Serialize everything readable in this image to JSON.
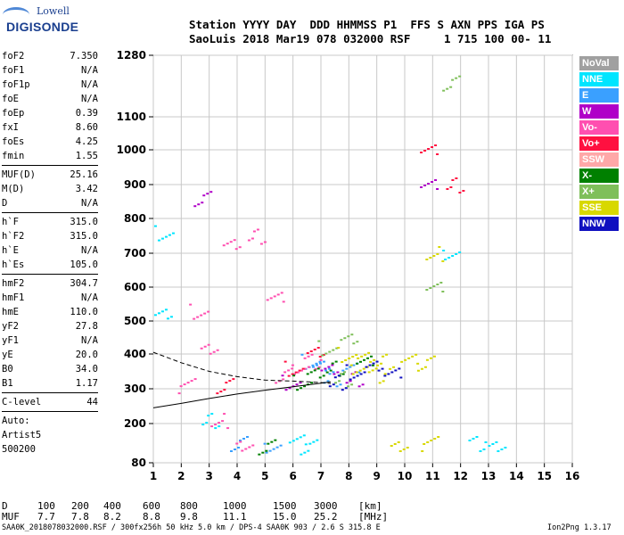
{
  "logo": {
    "line1": "Lowell",
    "line2": "DIGISONDE"
  },
  "header": {
    "line1": "Station YYYY DAY  DDD HHMMSS P1  FFS S AXN PPS IGA PS",
    "line2": "SaoLuis 2018 Mar19 078 032000 RSF     1 715 100 00- 11"
  },
  "params": {
    "group1": [
      {
        "name": "foF2",
        "value": "7.350"
      },
      {
        "name": "foF1",
        "value": "N/A"
      },
      {
        "name": "foF1p",
        "value": "N/A"
      },
      {
        "name": "foE",
        "value": "N/A"
      },
      {
        "name": "foEp",
        "value": "0.39"
      },
      {
        "name": "fxI",
        "value": "8.60"
      },
      {
        "name": "foEs",
        "value": "4.25"
      },
      {
        "name": "fmin",
        "value": "1.55"
      }
    ],
    "group2": [
      {
        "name": "MUF(D)",
        "value": "25.16"
      },
      {
        "name": "M(D)",
        "value": "3.42"
      },
      {
        "name": "D",
        "value": "N/A"
      }
    ],
    "group3": [
      {
        "name": "h`F",
        "value": "315.0"
      },
      {
        "name": "h`F2",
        "value": "315.0"
      },
      {
        "name": "h`E",
        "value": "N/A"
      },
      {
        "name": "h`Es",
        "value": "105.0"
      }
    ],
    "group4": [
      {
        "name": "hmF2",
        "value": "304.7"
      },
      {
        "name": "hmF1",
        "value": "N/A"
      },
      {
        "name": "hmE",
        "value": "110.0"
      },
      {
        "name": "yF2",
        "value": "27.8"
      },
      {
        "name": "yF1",
        "value": "N/A"
      },
      {
        "name": "yE",
        "value": "20.0"
      },
      {
        "name": "B0",
        "value": "34.0"
      },
      {
        "name": "B1",
        "value": "1.17"
      }
    ],
    "group5": [
      {
        "name": "C-level",
        "value": "44"
      }
    ],
    "auto": [
      "Auto:",
      "Artist5",
      "500200"
    ]
  },
  "legend": [
    {
      "label": "NoVal",
      "color": "#a0a0a0",
      "text_color": "#ffffff"
    },
    {
      "label": "NNE",
      "color": "#00e5ff",
      "text_color": "#ffffff"
    },
    {
      "label": "E",
      "color": "#3aa0ff",
      "text_color": "#ffffff"
    },
    {
      "label": "W",
      "color": "#b000c8",
      "text_color": "#ffffff"
    },
    {
      "label": "Vo-",
      "color": "#ff4fb0",
      "text_color": "#ffffff"
    },
    {
      "label": "Vo+",
      "color": "#ff1040",
      "text_color": "#ffffff"
    },
    {
      "label": "SSW",
      "color": "#ffa8a8",
      "text_color": "#ffffff"
    },
    {
      "label": "X-",
      "color": "#008000",
      "text_color": "#ffffff"
    },
    {
      "label": "X+",
      "color": "#7fbf5a",
      "text_color": "#ffffff"
    },
    {
      "label": "SSE",
      "color": "#d8d800",
      "text_color": "#ffffff"
    },
    {
      "label": "NNW",
      "color": "#1010c0",
      "text_color": "#ffffff"
    }
  ],
  "muf_table": {
    "d_label": "D",
    "muf_label": "MUF",
    "d_values": [
      "100",
      "200",
      "400",
      "600",
      "800",
      "1000",
      "1500",
      "3000"
    ],
    "muf_values": [
      "7.7",
      "7.8",
      "8.2",
      "8.8",
      "9.8",
      "11.1",
      "15.0",
      "25.2"
    ],
    "d_unit": "[km]",
    "muf_unit": "[MHz]"
  },
  "footer": {
    "left": "SAA0K_2018078032000.RSF / 300fx256h 50 kHz 5.0 km / DPS-4 SAA0K 903 / 2.6 S 315.8 E",
    "right": "Ion2Png 1.3.17"
  },
  "chart_data": {
    "type": "scatter",
    "xlabel": "",
    "ylabel": "",
    "x_range": [
      1,
      16
    ],
    "y_range": [
      80,
      1280
    ],
    "x_ticks": [
      1,
      2,
      3,
      4,
      5,
      6,
      7,
      8,
      9,
      10,
      11,
      12,
      13,
      14,
      15,
      16
    ],
    "y_ticks": [
      80,
      200,
      300,
      400,
      500,
      600,
      700,
      800,
      900,
      1000,
      1100,
      1280
    ],
    "scale": "reciprocal-style virtual height axis (compressed at top)",
    "grid": true,
    "series": [
      {
        "name": "NNE",
        "color": "#00e5ff",
        "points": [
          [
            1.35,
            760
          ],
          [
            1.35,
            515
          ],
          [
            3.05,
            210
          ],
          [
            6.1,
            150
          ],
          [
            6.5,
            130
          ],
          [
            11.6,
            700
          ],
          [
            12.6,
            140
          ],
          [
            13.3,
            140
          ]
        ]
      },
      {
        "name": "E",
        "color": "#3aa0ff",
        "points": [
          [
            6.6,
            380
          ],
          [
            7.0,
            360
          ],
          [
            7.4,
            330
          ],
          [
            8.0,
            360
          ],
          [
            4.0,
            140
          ],
          [
            5.2,
            130
          ]
        ]
      },
      {
        "name": "W",
        "color": "#b000c8",
        "points": [
          [
            5.9,
            320
          ],
          [
            7.3,
            350
          ],
          [
            8.2,
            330
          ],
          [
            10.8,
            900
          ],
          [
            2.7,
            860
          ]
        ]
      },
      {
        "name": "Vo-",
        "color": "#ff4fb0",
        "points": [
          [
            2.6,
            530
          ],
          [
            3.8,
            720
          ],
          [
            4.7,
            750
          ],
          [
            5.3,
            570
          ],
          [
            5.6,
            340
          ],
          [
            6.2,
            360
          ],
          [
            6.7,
            380
          ],
          [
            3.0,
            425
          ],
          [
            2.2,
            310
          ],
          [
            3.3,
            210
          ],
          [
            4.2,
            125
          ]
        ]
      },
      {
        "name": "Vo+",
        "color": "#ff1040",
        "points": [
          [
            6.0,
            360
          ],
          [
            6.8,
            400
          ],
          [
            11.8,
            900
          ],
          [
            10.8,
            1000
          ],
          [
            3.5,
            310
          ]
        ]
      },
      {
        "name": "X-",
        "color": "#008000",
        "points": [
          [
            6.3,
            320
          ],
          [
            6.8,
            340
          ],
          [
            7.5,
            360
          ],
          [
            8.5,
            380
          ],
          [
            5.0,
            130
          ]
        ]
      },
      {
        "name": "X+",
        "color": "#7fbf5a",
        "points": [
          [
            7.2,
            420
          ],
          [
            8.0,
            440
          ],
          [
            7.8,
            330
          ],
          [
            11.0,
            600
          ],
          [
            11.6,
            1200
          ]
        ]
      },
      {
        "name": "SSE",
        "color": "#d8d800",
        "points": [
          [
            7.9,
            400
          ],
          [
            8.6,
            385
          ],
          [
            9.3,
            380
          ],
          [
            10.1,
            385
          ],
          [
            10.7,
            375
          ],
          [
            8.3,
            360
          ],
          [
            9.0,
            340
          ],
          [
            9.8,
            140
          ],
          [
            10.9,
            140
          ],
          [
            11.0,
            700
          ]
        ]
      },
      {
        "name": "NNW",
        "color": "#1010c0",
        "points": [
          [
            8.2,
            350
          ],
          [
            8.9,
            360
          ],
          [
            7.6,
            320
          ],
          [
            9.5,
            345
          ]
        ]
      }
    ],
    "curves": [
      {
        "style": "dashed",
        "points": [
          [
            1.0,
            405
          ],
          [
            2.0,
            375
          ],
          [
            3.0,
            350
          ],
          [
            4.0,
            335
          ],
          [
            5.0,
            325
          ],
          [
            6.0,
            322
          ],
          [
            7.0,
            318
          ],
          [
            7.35,
            315
          ]
        ]
      },
      {
        "style": "solid",
        "points": [
          [
            1.0,
            245
          ],
          [
            2.0,
            258
          ],
          [
            3.0,
            272
          ],
          [
            4.0,
            285
          ],
          [
            5.0,
            296
          ],
          [
            6.0,
            306
          ],
          [
            7.0,
            316
          ],
          [
            7.35,
            320
          ]
        ]
      }
    ]
  }
}
